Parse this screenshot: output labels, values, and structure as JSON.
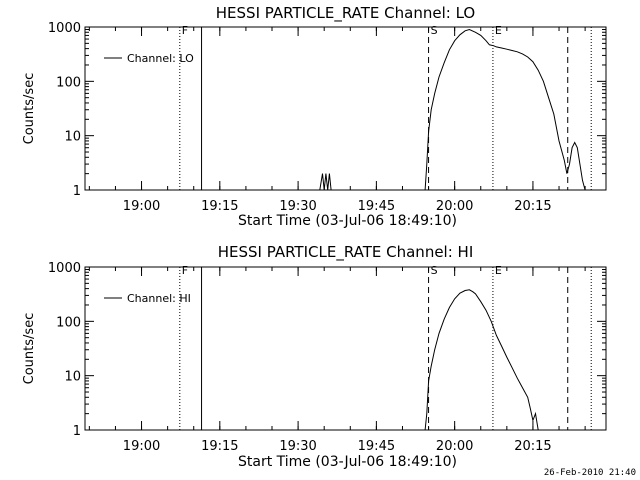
{
  "footer": {
    "timestamp": "26-Feb-2010 21:40"
  },
  "chart_data": [
    {
      "type": "line",
      "title": "HESSI PARTICLE_RATE Channel: LO",
      "xlabel": "Start Time (03-Jul-06 18:49:10)",
      "ylabel": "Counts/sec",
      "yscale": "log",
      "ylim": [
        1,
        1000
      ],
      "xlim": [
        "18:49:10",
        "20:29:00"
      ],
      "yticks": [
        1,
        10,
        100,
        1000
      ],
      "ytick_labels": [
        "1",
        "10",
        "100",
        "1000"
      ],
      "xticks": [
        "19:00",
        "19:15",
        "19:30",
        "19:45",
        "20:00",
        "20:15"
      ],
      "legend": {
        "position": "top-left",
        "entries": [
          "Channel: LO"
        ]
      },
      "markers": [
        {
          "time": "19:07:20",
          "style": "dotted",
          "label": "F"
        },
        {
          "time": "19:11:30",
          "style": "solid",
          "label": ""
        },
        {
          "time": "19:55:00",
          "style": "dashed",
          "label": "S"
        },
        {
          "time": "20:07:20",
          "style": "dotted",
          "label": "E"
        },
        {
          "time": "20:21:40",
          "style": "dashed",
          "label": ""
        },
        {
          "time": "20:26:10",
          "style": "dotted",
          "label": ""
        }
      ],
      "series": [
        {
          "name": "Channel: LO",
          "x": [
            "19:34:10",
            "19:34:40",
            "19:35:00",
            "19:35:20",
            "19:35:40",
            "19:36:00",
            "19:36:20",
            "19:36:40",
            "19:54:20",
            "19:54:40",
            "19:55:00",
            "19:55:30",
            "19:56:10",
            "19:57:00",
            "19:58:00",
            "19:59:00",
            "20:00:00",
            "20:01:00",
            "20:02:00",
            "20:02:50",
            "20:04:00",
            "20:05:00",
            "20:06:00",
            "20:06:40",
            "20:07:30",
            "20:08:00",
            "20:09:00",
            "20:10:00",
            "20:11:00",
            "20:12:00",
            "20:13:00",
            "20:14:00",
            "20:15:00",
            "20:16:00",
            "20:17:00",
            "20:18:00",
            "20:19:00",
            "20:20:00",
            "20:21:00",
            "20:21:30",
            "20:22:00",
            "20:22:30",
            "20:23:00",
            "20:23:30",
            "20:24:00",
            "20:24:30",
            "20:25:00"
          ],
          "y": [
            1.0,
            2.0,
            1.0,
            2.0,
            1.0,
            2.0,
            1.0,
            1.0,
            1.0,
            3.0,
            12,
            30,
            60,
            120,
            220,
            380,
            560,
            720,
            850,
            900,
            800,
            700,
            560,
            470,
            450,
            430,
            410,
            390,
            370,
            350,
            320,
            280,
            230,
            160,
            100,
            50,
            25,
            8,
            3.5,
            2.0,
            3.0,
            6.0,
            7.5,
            6.0,
            3.0,
            1.5,
            1.0
          ]
        }
      ]
    },
    {
      "type": "line",
      "title": "HESSI PARTICLE_RATE Channel: HI",
      "xlabel": "Start Time (03-Jul-06 18:49:10)",
      "ylabel": "Counts/sec",
      "yscale": "log",
      "ylim": [
        1,
        1000
      ],
      "xlim": [
        "18:49:10",
        "20:29:00"
      ],
      "yticks": [
        1,
        10,
        100,
        1000
      ],
      "ytick_labels": [
        "1",
        "10",
        "100",
        "1000"
      ],
      "xticks": [
        "19:00",
        "19:15",
        "19:30",
        "19:45",
        "20:00",
        "20:15"
      ],
      "legend": {
        "position": "top-left",
        "entries": [
          "Channel: HI"
        ]
      },
      "markers": [
        {
          "time": "19:07:20",
          "style": "dotted",
          "label": "F"
        },
        {
          "time": "19:11:30",
          "style": "solid",
          "label": ""
        },
        {
          "time": "19:55:00",
          "style": "dashed",
          "label": "S"
        },
        {
          "time": "20:07:20",
          "style": "dotted",
          "label": "E"
        },
        {
          "time": "20:21:40",
          "style": "dashed",
          "label": ""
        },
        {
          "time": "20:26:10",
          "style": "dotted",
          "label": ""
        }
      ],
      "series": [
        {
          "name": "Channel: HI",
          "x": [
            "19:54:20",
            "19:54:40",
            "19:55:00",
            "19:55:30",
            "19:56:10",
            "19:57:00",
            "19:58:00",
            "19:59:00",
            "20:00:00",
            "20:01:00",
            "20:02:00",
            "20:02:50",
            "20:03:30",
            "20:04:00",
            "20:05:00",
            "20:06:00",
            "20:07:00",
            "20:08:00",
            "20:09:00",
            "20:10:00",
            "20:11:00",
            "20:12:00",
            "20:13:00",
            "20:14:00",
            "20:14:30",
            "20:15:00",
            "20:15:30",
            "20:16:00"
          ],
          "y": [
            1.0,
            2.0,
            8,
            15,
            30,
            60,
            110,
            180,
            260,
            330,
            370,
            380,
            350,
            320,
            230,
            160,
            100,
            55,
            35,
            22,
            14,
            9,
            6,
            4,
            2.5,
            1.5,
            2.0,
            1.0
          ]
        }
      ]
    }
  ]
}
